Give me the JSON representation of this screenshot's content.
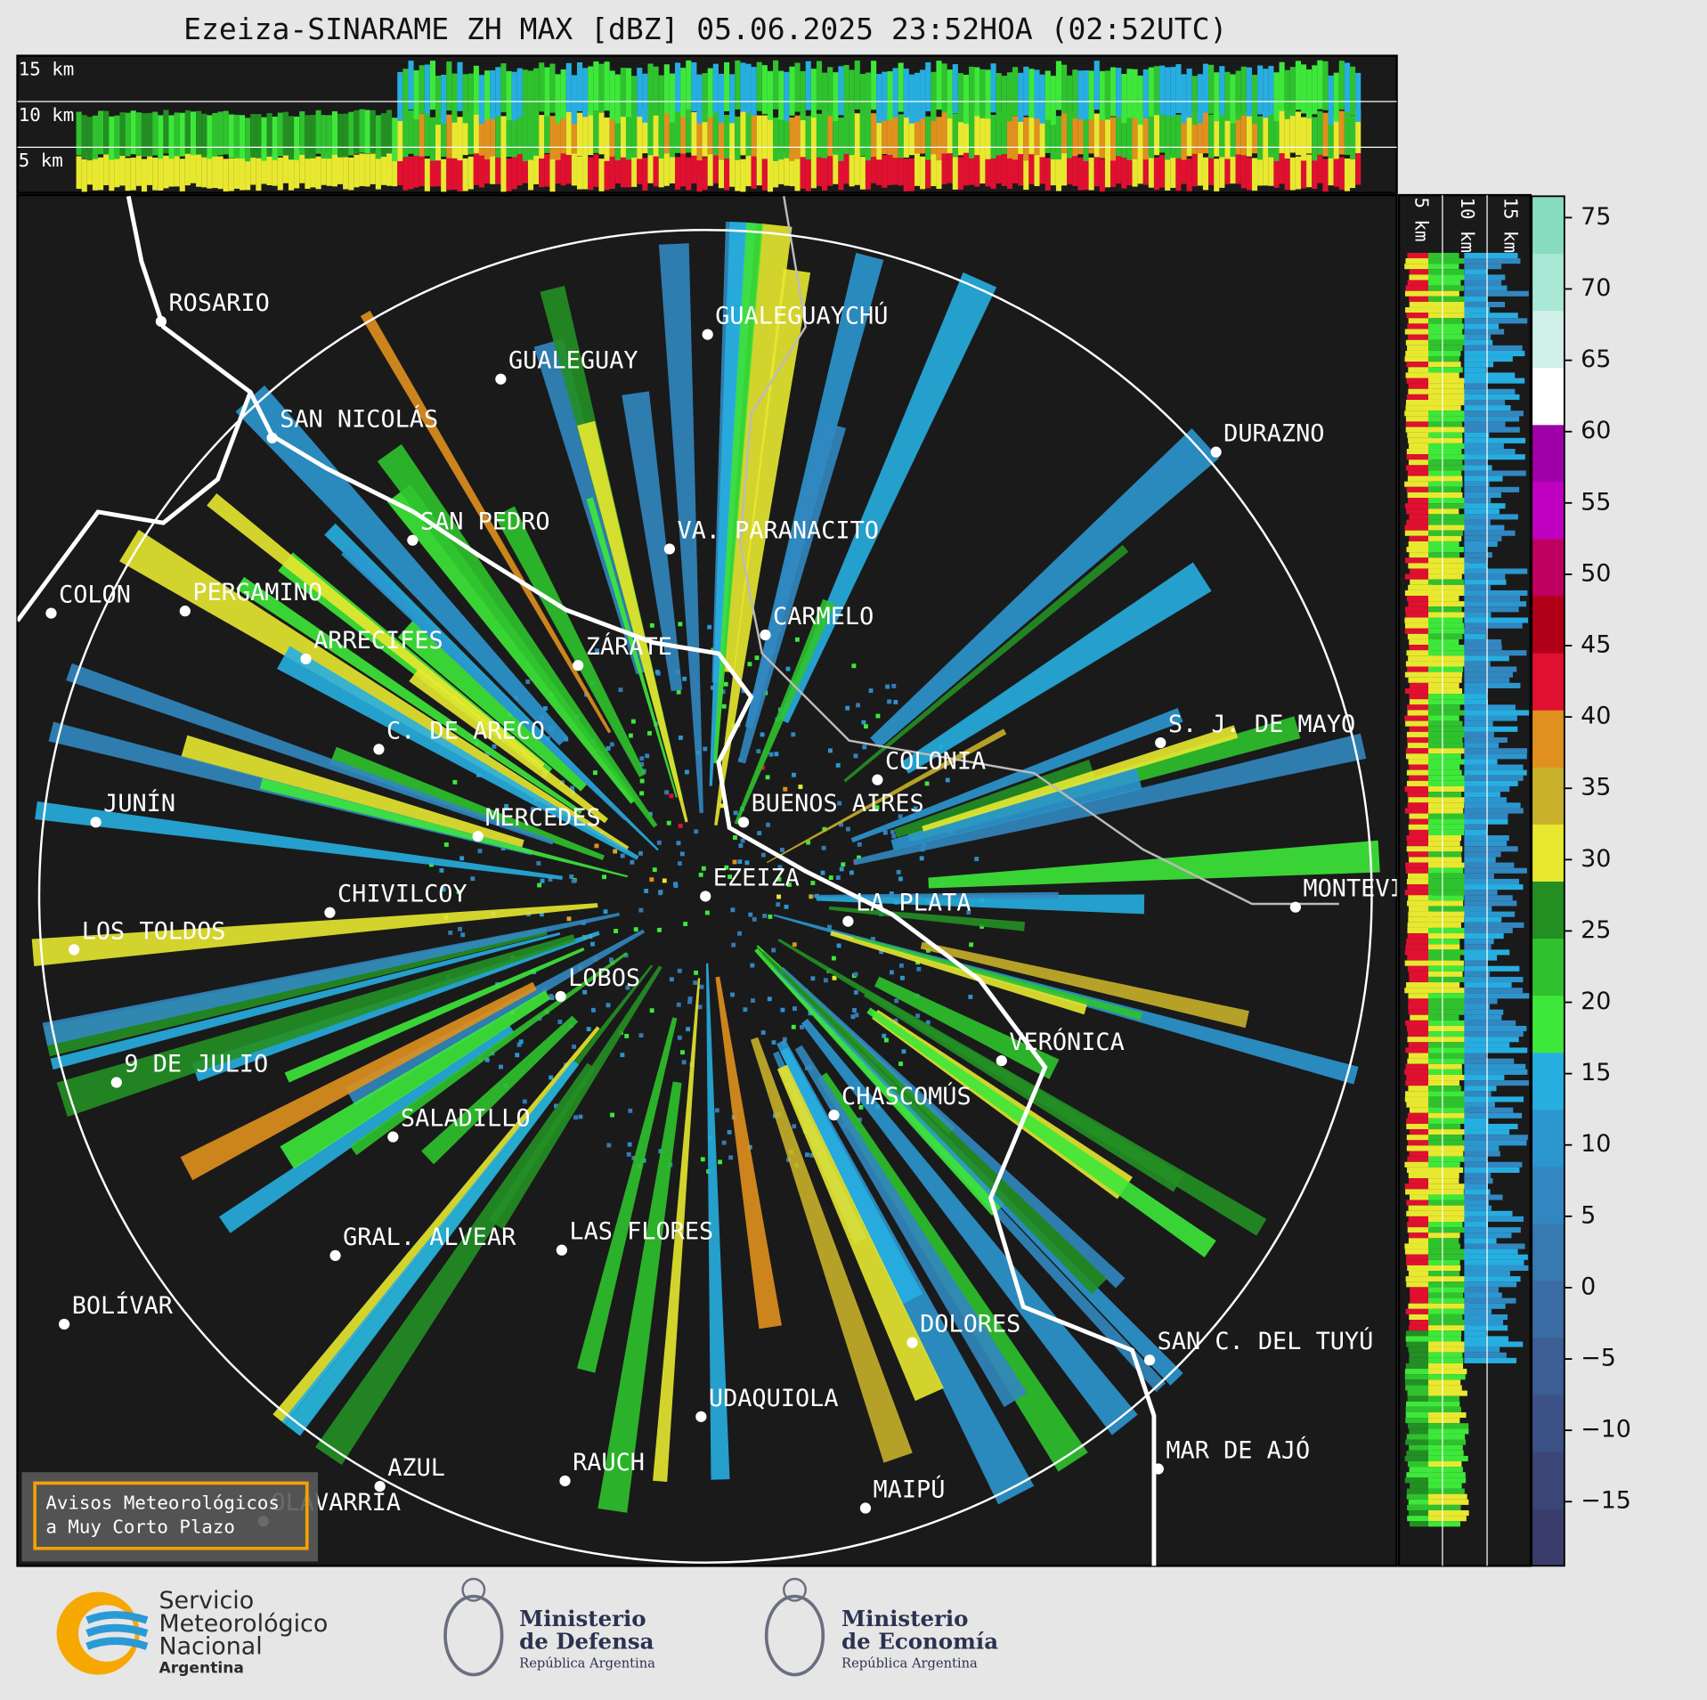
{
  "title": "Ezeiza-SINARAME ZH MAX [dBZ] 05.06.2025 23:52HOA (02:52UTC)",
  "profile_labels": {
    "top": [
      "15 km",
      "10 km",
      "5 km"
    ],
    "side": [
      "5 km",
      "10 km",
      "15 km"
    ]
  },
  "cities": [
    "ROSARIO",
    "GUALEGUAYCHÚ",
    "GUALEGUAY",
    "SAN NICOLÁS",
    "DURAZNO",
    "SAN PEDRO",
    "VA. PARANACITO",
    "COLON",
    "PERGAMINO",
    "CARMELO",
    "ARRECIFES",
    "ZÁRATE",
    "C. DE ARECO",
    "S. J. DE MAYO",
    "COLONIA",
    "BUENOS AIRES",
    "JUNÍN",
    "MERCEDES",
    "EZEIZA",
    "LA PLATA",
    "MONTEVIDEO",
    "CHIVILCOY",
    "LOS TOLDOS",
    "LOBOS",
    "VERÓNICA",
    "9 DE JULIO",
    "CHASCOMÚS",
    "SALADILLO",
    "GRAL. ALVEAR",
    "LAS FLORES",
    "BOLÍVAR",
    "DOLORES",
    "SAN C. DEL TUYÚ",
    "UDAQUIOLA",
    "MAR DE AJÓ",
    "AZUL",
    "RAUCH",
    "OLAVARRÍA",
    "MAIPÚ"
  ],
  "colorbar": {
    "range": [
      -19.5,
      76.5
    ],
    "ticks": [
      {
        "value": -15,
        "label": "−15"
      },
      {
        "value": -10,
        "label": "−10"
      },
      {
        "value": -5,
        "label": "−5"
      },
      0,
      5,
      10,
      15,
      20,
      25,
      30,
      35,
      40,
      45,
      50,
      55,
      60,
      65,
      70,
      75
    ],
    "colors": [
      "#3a3d6b",
      "#3b4577",
      "#3c5185",
      "#3c5e94",
      "#3b6ca3",
      "#3779b1",
      "#3287c0",
      "#2c96cf",
      "#27aee0",
      "#3ee83a",
      "#2fc22e",
      "#238f23",
      "#e8e830",
      "#c8b02a",
      "#e0901e",
      "#e01030",
      "#b00018",
      "#c00060",
      "#c000c0",
      "#a000a8",
      "#ffffff",
      "#d0f0e8",
      "#a8e8d4",
      "#88dcc0"
    ]
  },
  "notice": [
    "Avisos Meteorológicos",
    "a Muy Corto Plazo"
  ],
  "logos": {
    "smn": [
      "Servicio",
      "Meteorológico",
      "Nacional",
      "Argentina"
    ],
    "defensa": [
      "Ministerio",
      "de Defensa",
      "República Argentina"
    ],
    "economia": [
      "Ministerio",
      "de Economía",
      "República Argentina"
    ]
  }
}
